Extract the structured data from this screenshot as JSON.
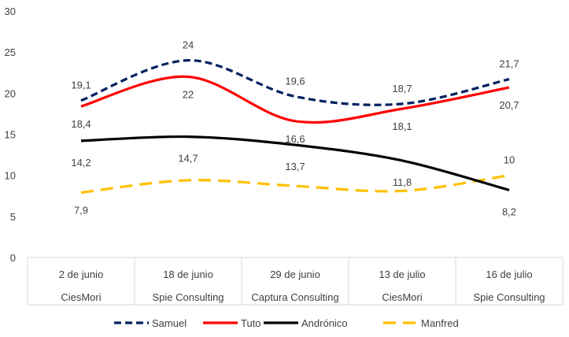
{
  "chart_data": {
    "type": "line",
    "title": "",
    "xlabel": "",
    "ylabel": "",
    "ylim": [
      0,
      30
    ],
    "yticks": [
      "0",
      "5",
      "10",
      "15",
      "20",
      "25",
      "30"
    ],
    "grid": false,
    "legend_position": "bottom",
    "categories": [
      {
        "date": "2 de junio",
        "company": "CiesMori"
      },
      {
        "date": "18 de junio",
        "company": "Spie Consulting"
      },
      {
        "date": "29 de junio",
        "company": "Captura Consulting"
      },
      {
        "date": "13 de julio",
        "company": "CiesMori"
      },
      {
        "date": "16 de julio",
        "company": "Spie Consulting"
      }
    ],
    "series": [
      {
        "name": "Samuel",
        "color": "#002060",
        "dash": "dashed",
        "values": [
          19.1,
          24,
          19.6,
          18.7,
          21.7
        ],
        "labels": [
          "19,1",
          "24",
          "19,6",
          "18,7",
          "21,7"
        ]
      },
      {
        "name": "Tuto",
        "color": "#ff0000",
        "dash": "solid",
        "values": [
          18.4,
          22,
          16.6,
          18.1,
          20.7
        ],
        "labels": [
          "18,4",
          "22",
          "16,6",
          "18,1",
          "20,7"
        ]
      },
      {
        "name": "Andrónico",
        "color": "#000000",
        "dash": "solid",
        "values": [
          14.2,
          14.7,
          13.7,
          11.8,
          8.2
        ],
        "labels": [
          "14,2",
          "14,7",
          "13,7",
          "11,8",
          "8,2"
        ]
      },
      {
        "name": "Manfred",
        "color": "#ffc000",
        "dash": "longdash",
        "values": [
          7.9,
          9.4,
          8.7,
          8.1,
          10
        ],
        "labels": [
          "7,9",
          "",
          "",
          "",
          "10"
        ]
      }
    ]
  }
}
